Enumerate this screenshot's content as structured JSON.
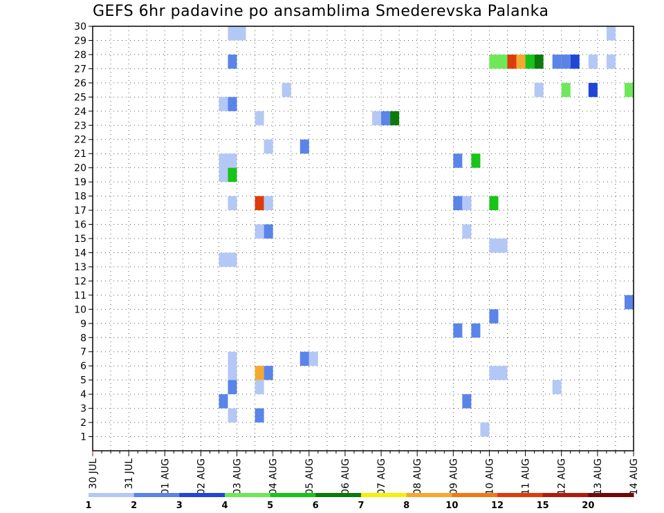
{
  "chart_data": {
    "type": "heatmap",
    "title": "GEFS 6hr padavine po ansamblima Smederevska Palanka",
    "xlabel": "",
    "ylabel": "",
    "y_range": [
      0,
      30
    ],
    "y_ticks": [
      1,
      2,
      3,
      4,
      5,
      6,
      7,
      8,
      9,
      10,
      11,
      12,
      13,
      14,
      15,
      16,
      17,
      18,
      19,
      20,
      21,
      22,
      23,
      24,
      25,
      26,
      27,
      28,
      29,
      30
    ],
    "x_ticks": [
      "30 JUL",
      "31 JUL",
      "01 AUG",
      "02 AUG",
      "03 AUG",
      "04 AUG",
      "05 AUG",
      "06 AUG",
      "07 AUG",
      "08 AUG",
      "09 AUG",
      "10 AUG",
      "11 AUG",
      "12 AUG",
      "13 AUG",
      "14 AUG"
    ],
    "x_range_steps": [
      0,
      60
    ],
    "steps_per_day": 4,
    "grid": true,
    "legend": {
      "placement": "bottom",
      "levels": [
        {
          "label": "1",
          "color": "#b4c8f5"
        },
        {
          "label": "2",
          "color": "#5a84e8"
        },
        {
          "label": "3",
          "color": "#1f46d6"
        },
        {
          "label": "4",
          "color": "#6ee85a"
        },
        {
          "label": "5",
          "color": "#18c418"
        },
        {
          "label": "6",
          "color": "#0b7a0b"
        },
        {
          "label": "7",
          "color": "#f4f00a"
        },
        {
          "label": "8",
          "color": "#f5a830"
        },
        {
          "label": "10",
          "color": "#f07818"
        },
        {
          "label": "12",
          "color": "#dc3c0c"
        },
        {
          "label": "15",
          "color": "#b01c0c"
        },
        {
          "label": "20",
          "color": "#6e0a0a"
        }
      ],
      "end_color": "#6e0a0a"
    },
    "cells": [
      {
        "t": 15,
        "m": 29,
        "v": 1
      },
      {
        "t": 16,
        "m": 29,
        "v": 1
      },
      {
        "t": 57,
        "m": 29,
        "v": 1
      },
      {
        "t": 15,
        "m": 27,
        "v": 2
      },
      {
        "t": 44,
        "m": 27,
        "v": 4
      },
      {
        "t": 45,
        "m": 27,
        "v": 4
      },
      {
        "t": 46,
        "m": 27,
        "v": 12
      },
      {
        "t": 47,
        "m": 27,
        "v": 8
      },
      {
        "t": 48,
        "m": 27,
        "v": 5
      },
      {
        "t": 49,
        "m": 27,
        "v": 6
      },
      {
        "t": 51,
        "m": 27,
        "v": 2
      },
      {
        "t": 52,
        "m": 27,
        "v": 2
      },
      {
        "t": 53,
        "m": 27,
        "v": 3
      },
      {
        "t": 55,
        "m": 27,
        "v": 1
      },
      {
        "t": 57,
        "m": 27,
        "v": 1
      },
      {
        "t": 21,
        "m": 25,
        "v": 1
      },
      {
        "t": 49,
        "m": 25,
        "v": 1
      },
      {
        "t": 52,
        "m": 25,
        "v": 4
      },
      {
        "t": 55,
        "m": 25,
        "v": 3
      },
      {
        "t": 59,
        "m": 25,
        "v": 4
      },
      {
        "t": 14,
        "m": 24,
        "v": 1
      },
      {
        "t": 15,
        "m": 24,
        "v": 2
      },
      {
        "t": 18,
        "m": 23,
        "v": 1
      },
      {
        "t": 31,
        "m": 23,
        "v": 1
      },
      {
        "t": 32,
        "m": 23,
        "v": 2
      },
      {
        "t": 33,
        "m": 23,
        "v": 6
      },
      {
        "t": 19,
        "m": 21,
        "v": 1
      },
      {
        "t": 23,
        "m": 21,
        "v": 2
      },
      {
        "t": 14,
        "m": 20,
        "v": 1
      },
      {
        "t": 15,
        "m": 20,
        "v": 1
      },
      {
        "t": 40,
        "m": 20,
        "v": 2
      },
      {
        "t": 42,
        "m": 20,
        "v": 5
      },
      {
        "t": 14,
        "m": 19,
        "v": 1
      },
      {
        "t": 15,
        "m": 19,
        "v": 5
      },
      {
        "t": 15,
        "m": 17,
        "v": 1
      },
      {
        "t": 18,
        "m": 17,
        "v": 12
      },
      {
        "t": 19,
        "m": 17,
        "v": 1
      },
      {
        "t": 40,
        "m": 17,
        "v": 2
      },
      {
        "t": 41,
        "m": 17,
        "v": 1
      },
      {
        "t": 44,
        "m": 17,
        "v": 5
      },
      {
        "t": 18,
        "m": 15,
        "v": 1
      },
      {
        "t": 19,
        "m": 15,
        "v": 2
      },
      {
        "t": 41,
        "m": 15,
        "v": 1
      },
      {
        "t": 44,
        "m": 14,
        "v": 1
      },
      {
        "t": 45,
        "m": 14,
        "v": 1
      },
      {
        "t": 14,
        "m": 13,
        "v": 1
      },
      {
        "t": 15,
        "m": 13,
        "v": 1
      },
      {
        "t": 59,
        "m": 10,
        "v": 2
      },
      {
        "t": 44,
        "m": 9,
        "v": 2
      },
      {
        "t": 40,
        "m": 8,
        "v": 2
      },
      {
        "t": 42,
        "m": 8,
        "v": 2
      },
      {
        "t": 15,
        "m": 6,
        "v": 1
      },
      {
        "t": 23,
        "m": 6,
        "v": 2
      },
      {
        "t": 24,
        "m": 6,
        "v": 1
      },
      {
        "t": 15,
        "m": 5,
        "v": 1
      },
      {
        "t": 18,
        "m": 5,
        "v": 8
      },
      {
        "t": 19,
        "m": 5,
        "v": 2
      },
      {
        "t": 44,
        "m": 5,
        "v": 1
      },
      {
        "t": 45,
        "m": 5,
        "v": 1
      },
      {
        "t": 15,
        "m": 4,
        "v": 2
      },
      {
        "t": 18,
        "m": 4,
        "v": 1
      },
      {
        "t": 51,
        "m": 4,
        "v": 1
      },
      {
        "t": 14,
        "m": 3,
        "v": 2
      },
      {
        "t": 41,
        "m": 3,
        "v": 2
      },
      {
        "t": 15,
        "m": 2,
        "v": 1
      },
      {
        "t": 18,
        "m": 2,
        "v": 2
      },
      {
        "t": 43,
        "m": 1,
        "v": 1
      }
    ]
  }
}
